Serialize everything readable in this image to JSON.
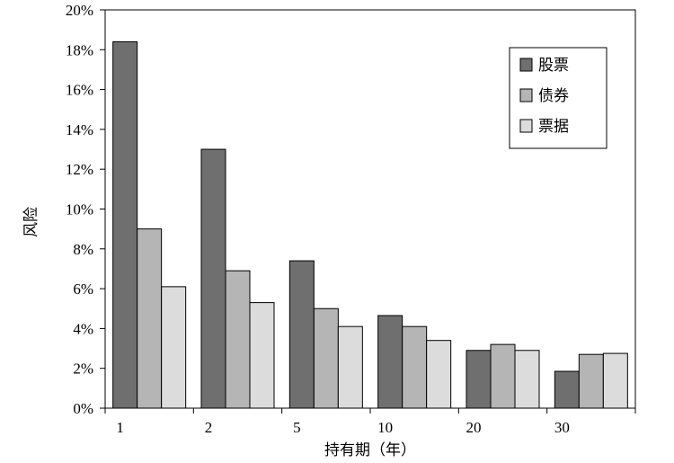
{
  "chart_data": {
    "type": "bar",
    "title": "",
    "xlabel": "持有期（年）",
    "ylabel": "风险",
    "categories": [
      "1",
      "2",
      "5",
      "10",
      "20",
      "30"
    ],
    "series": [
      {
        "name": "股票",
        "color": "#6f6f6f",
        "values": [
          18.4,
          13.0,
          7.4,
          4.65,
          2.9,
          1.85
        ]
      },
      {
        "name": "债券",
        "color": "#b5b5b5",
        "values": [
          9.0,
          6.9,
          5.0,
          4.1,
          3.2,
          2.7
        ]
      },
      {
        "name": "票据",
        "color": "#dcdcdc",
        "values": [
          6.1,
          5.3,
          4.1,
          3.4,
          2.9,
          2.75
        ]
      }
    ],
    "ylim": [
      0,
      20
    ],
    "yticks": [
      "0%",
      "2%",
      "4%",
      "6%",
      "8%",
      "10%",
      "12%",
      "14%",
      "16%",
      "18%",
      "20%"
    ],
    "grid": false,
    "legend_position": "top-right"
  }
}
